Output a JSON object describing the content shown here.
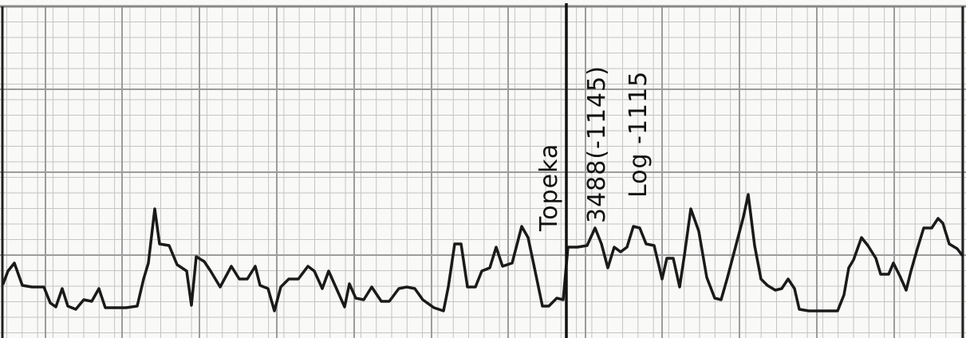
{
  "annotation": {
    "formation": "Topeka",
    "depth": "3488(-1145)",
    "log_datum": "Log -1115"
  },
  "colors": {
    "trace": "#1a1a1a",
    "grid_minor": "#c4c4c4",
    "grid_major": "#9c9c9c",
    "paper": "#f9f9f7",
    "ink": "#111111"
  }
}
